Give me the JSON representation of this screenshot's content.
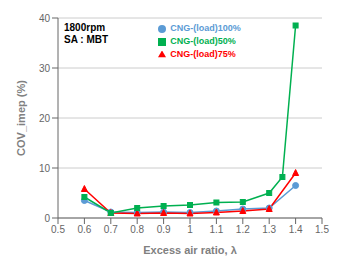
{
  "chart_data": {
    "type": "line",
    "annotations": [
      "1800rpm\nSA : MBT"
    ],
    "x_label": "Excess air ratio,  λ",
    "y_label": "COV_imep  (%)",
    "xlim": [
      0.5,
      1.5
    ],
    "ylim": [
      0,
      40
    ],
    "xticks": [
      0.5,
      0.6,
      0.7,
      0.8,
      0.9,
      1,
      1.1,
      1.2,
      1.3,
      1.4,
      1.5
    ],
    "yticks": [
      0,
      10,
      20,
      30,
      40
    ],
    "grid": "y",
    "legend": "upper center",
    "series": [
      {
        "name": "CNG-(load)100%",
        "color": "#5B9BD5",
        "marker": "circle",
        "x": [
          0.6,
          0.7,
          0.8,
          0.9,
          1.0,
          1.1,
          1.2,
          1.3,
          1.4
        ],
        "values": [
          3.5,
          1.2,
          1.1,
          1.2,
          1.1,
          1.4,
          1.8,
          2.0,
          6.5
        ]
      },
      {
        "name": "CNG-(load)75%",
        "color": "#FF0000",
        "marker": "triangle",
        "x": [
          0.6,
          0.7,
          0.8,
          0.9,
          1.0,
          1.1,
          1.2,
          1.3,
          1.4
        ],
        "values": [
          5.8,
          1.0,
          0.9,
          1.0,
          0.9,
          1.1,
          1.4,
          1.8,
          9.0
        ]
      },
      {
        "name": "CNG-(load)50%",
        "color": "#00B050",
        "marker": "square",
        "x": [
          0.6,
          0.7,
          0.8,
          0.9,
          1.0,
          1.1,
          1.2,
          1.3,
          1.35,
          1.4
        ],
        "values": [
          4.2,
          1.0,
          2.0,
          2.4,
          2.6,
          3.1,
          3.2,
          5.0,
          8.2,
          38.5
        ]
      }
    ]
  }
}
